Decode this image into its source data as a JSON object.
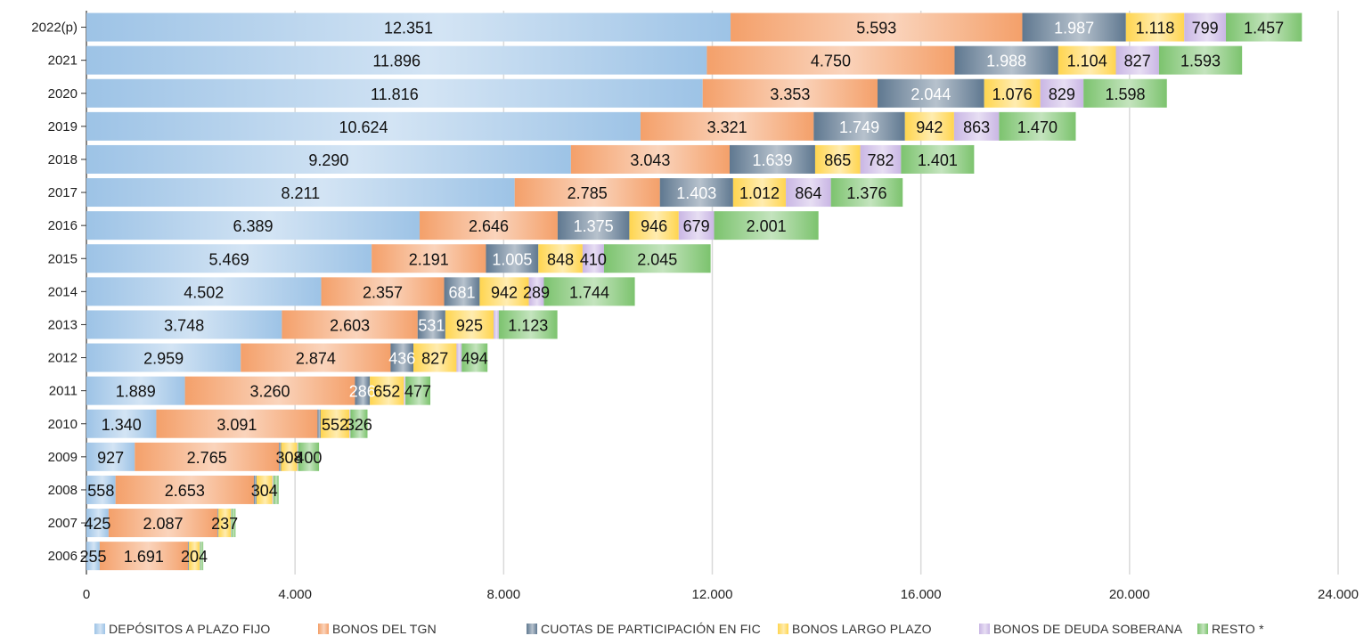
{
  "chart_data": {
    "type": "bar",
    "orientation": "horizontal",
    "stacked": true,
    "categories": [
      "2022(p)",
      "2021",
      "2020",
      "2019",
      "2018",
      "2017",
      "2016",
      "2015",
      "2014",
      "2013",
      "2012",
      "2011",
      "2010",
      "2009",
      "2008",
      "2007",
      "2006"
    ],
    "series": [
      {
        "name": "DEPÓSITOS A PLAZO FIJO",
        "color": "#9dc3e6",
        "label_color": "#111111",
        "values": [
          12351,
          11896,
          11816,
          10624,
          9290,
          8211,
          6389,
          5469,
          4502,
          3748,
          2959,
          1889,
          1340,
          927,
          558,
          425,
          255
        ],
        "labels": [
          "12.351",
          "11.896",
          "11.816",
          "10.624",
          "9.290",
          "8.211",
          "6.389",
          "5.469",
          "4.502",
          "3.748",
          "2.959",
          "1.889",
          "1.340",
          "927",
          "558",
          "425",
          "255"
        ]
      },
      {
        "name": "BONOS DEL TGN",
        "color": "#f4a06a",
        "label_color": "#111111",
        "values": [
          5593,
          4750,
          3353,
          3321,
          3043,
          2785,
          2646,
          2191,
          2357,
          2603,
          2874,
          3260,
          3091,
          2765,
          2653,
          2087,
          1691
        ],
        "labels": [
          "5.593",
          "4.750",
          "3.353",
          "3.321",
          "3.043",
          "2.785",
          "2.646",
          "2.191",
          "2.357",
          "2.603",
          "2.874",
          "3.260",
          "3.091",
          "2.765",
          "2.653",
          "2.087",
          "1.691"
        ]
      },
      {
        "name": "CUOTAS DE PARTICIPACIÓN EN FIC",
        "color": "#5f7890",
        "label_color": "#ffffff",
        "values": [
          1987,
          1988,
          2044,
          1749,
          1639,
          1403,
          1375,
          1005,
          681,
          531,
          436,
          286,
          60,
          40,
          50,
          20,
          20
        ],
        "labels": [
          "1.987",
          "1.988",
          "2.044",
          "1.749",
          "1.639",
          "1.403",
          "1.375",
          "1.005",
          "681",
          "531",
          "436",
          "286",
          "",
          "",
          "",
          "",
          ""
        ]
      },
      {
        "name": "BONOS LARGO PLAZO",
        "color": "#ffd54f",
        "label_color": "#111111",
        "values": [
          1118,
          1104,
          1076,
          942,
          865,
          1012,
          946,
          848,
          942,
          925,
          827,
          652,
          552,
          308,
          304,
          237,
          204
        ],
        "labels": [
          "1.118",
          "1.104",
          "1.076",
          "942",
          "865",
          "1.012",
          "946",
          "848",
          "942",
          "925",
          "827",
          "652",
          "552",
          "308",
          "304",
          "237",
          "204"
        ]
      },
      {
        "name": "BONOS DE DEUDA SOBERANA",
        "color": "#c9b6e4",
        "label_color": "#111111",
        "values": [
          799,
          827,
          829,
          863,
          782,
          864,
          679,
          410,
          289,
          100,
          100,
          30,
          20,
          20,
          20,
          10,
          10
        ],
        "labels": [
          "799",
          "827",
          "829",
          "863",
          "782",
          "864",
          "679",
          "410",
          "289",
          "",
          "",
          "",
          "",
          "",
          "",
          "",
          ""
        ]
      },
      {
        "name": "RESTO *",
        "color": "#7cc36e",
        "label_color": "#111111",
        "values": [
          1457,
          1593,
          1598,
          1470,
          1401,
          1376,
          2001,
          2045,
          1744,
          1123,
          494,
          477,
          326,
          400,
          100,
          80,
          60
        ],
        "labels": [
          "1.457",
          "1.593",
          "1.598",
          "1.470",
          "1.401",
          "1.376",
          "2.001",
          "2.045",
          "1.744",
          "1.123",
          "494",
          "477",
          "326",
          "400",
          "",
          "",
          ""
        ]
      }
    ],
    "xlim": [
      0,
      24000
    ],
    "xticks": [
      0,
      4000,
      8000,
      12000,
      16000,
      20000,
      24000
    ],
    "xtick_labels": [
      "0",
      "4.000",
      "8.000",
      "12.000",
      "16.000",
      "20.000",
      "24.000"
    ],
    "grid": "vertical",
    "legend_position": "bottom",
    "title": "",
    "xlabel": "",
    "ylabel": ""
  }
}
